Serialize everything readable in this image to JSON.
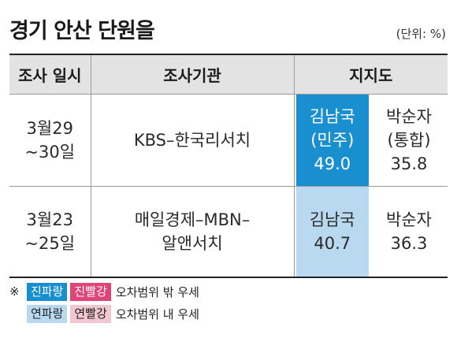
{
  "title": "경기 안산 단원을",
  "unit": "(단위: %)",
  "headers": {
    "date": "조사 일시",
    "pollster": "조사기관",
    "support": "지지도"
  },
  "rows": [
    {
      "date_line1": "3월29",
      "date_line2": "~30일",
      "pollster_line1": "KBS–한국리서치",
      "pollster_line2": "",
      "cand_a_name": "김남국",
      "cand_a_party": "(민주)",
      "cand_a_value": "49.0",
      "cand_b_name": "박순자",
      "cand_b_party": "(통합)",
      "cand_b_value": "35.8"
    },
    {
      "date_line1": "3월23",
      "date_line2": "~25일",
      "pollster_line1": "매일경제–MBN–",
      "pollster_line2": "알앤서치",
      "cand_a_name": "김남국",
      "cand_a_value": "40.7",
      "cand_b_name": "박순자",
      "cand_b_value": "36.3"
    }
  ],
  "legend": {
    "mark": "※",
    "dark_blue": "진파랑",
    "dark_red": "진빨강",
    "dark_desc": "오차범위 밖 우세",
    "light_blue": "연파랑",
    "light_red": "연빨강",
    "light_desc": "오차범위 내 우세"
  },
  "colors": {
    "dark_blue": "#1a8fd0",
    "light_blue": "#b8d9f0",
    "dark_red": "#e0457a",
    "light_red": "#f2c6d3",
    "header_bg": "#e3e3e3"
  }
}
